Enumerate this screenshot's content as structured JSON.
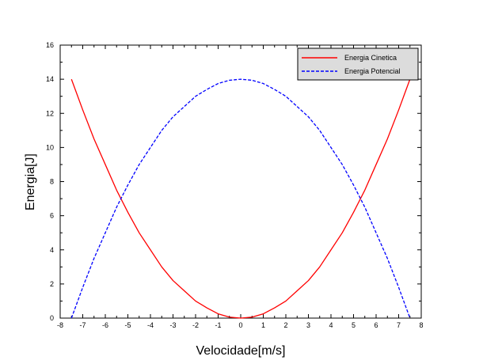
{
  "chart_data": {
    "type": "line",
    "title": "",
    "xlabel": "Velocidade[m/s]",
    "ylabel": "Energia[J]",
    "xlim": [
      -8,
      8
    ],
    "ylim": [
      0,
      16
    ],
    "x_ticks": [
      -8,
      -7,
      -6,
      -5,
      -4,
      -3,
      -2,
      -1,
      0,
      1,
      2,
      3,
      4,
      5,
      6,
      7,
      8
    ],
    "y_ticks": [
      0,
      2,
      4,
      6,
      8,
      10,
      12,
      14,
      16
    ],
    "grid": false,
    "legend_position": "top-right",
    "series": [
      {
        "name": "Energia Cinetica",
        "color": "#ff0000",
        "style": "solid",
        "x": [
          -7.5,
          -7,
          -6.5,
          -6,
          -5.5,
          -5,
          -4.5,
          -4,
          -3.5,
          -3,
          -2.5,
          -2,
          -1.5,
          -1,
          -0.5,
          0,
          0.5,
          1,
          1.5,
          2,
          2.5,
          3,
          3.5,
          4,
          4.5,
          5,
          5.5,
          6,
          6.5,
          7,
          7.5
        ],
        "y": [
          14.0,
          12.2,
          10.5,
          9.0,
          7.5,
          6.2,
          5.0,
          4.0,
          3.0,
          2.2,
          1.6,
          1.0,
          0.6,
          0.25,
          0.06,
          0.0,
          0.06,
          0.25,
          0.6,
          1.0,
          1.6,
          2.2,
          3.0,
          4.0,
          5.0,
          6.2,
          7.5,
          9.0,
          10.5,
          12.2,
          14.0
        ]
      },
      {
        "name": "Energia Potencial",
        "color": "#0000ff",
        "style": "dashed",
        "x": [
          -7.5,
          -7,
          -6.5,
          -6,
          -5.5,
          -5,
          -4.5,
          -4,
          -3.5,
          -3,
          -2.5,
          -2,
          -1.5,
          -1,
          -0.5,
          0,
          0.5,
          1,
          1.5,
          2,
          2.5,
          3,
          3.5,
          4,
          4.5,
          5,
          5.5,
          6,
          6.5,
          7,
          7.5
        ],
        "y": [
          0.0,
          1.8,
          3.5,
          5.0,
          6.5,
          7.8,
          9.0,
          10.0,
          11.0,
          11.8,
          12.4,
          13.0,
          13.4,
          13.75,
          13.94,
          14.0,
          13.94,
          13.75,
          13.4,
          13.0,
          12.4,
          11.8,
          11.0,
          10.0,
          9.0,
          7.8,
          6.5,
          5.0,
          3.5,
          1.8,
          0.0
        ]
      }
    ]
  }
}
